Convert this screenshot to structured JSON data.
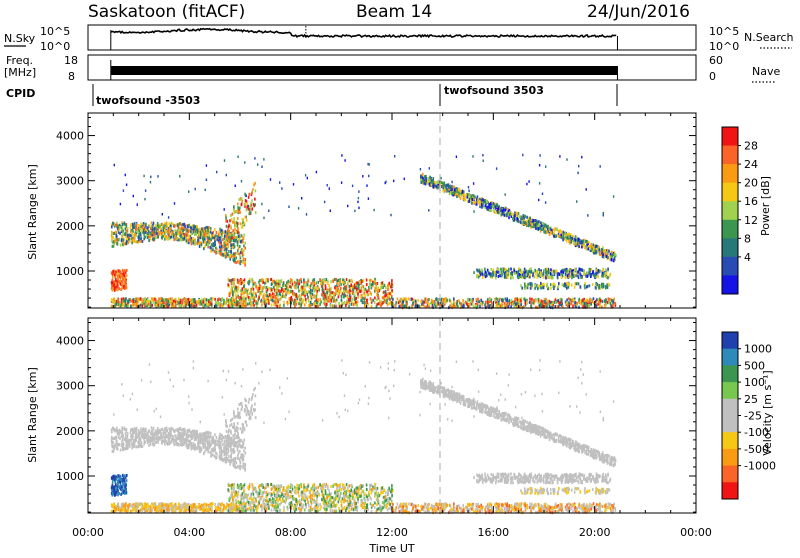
{
  "header": {
    "station": "Saskatoon (fitACF)",
    "beam": "Beam 14",
    "date": "24/Jun/2016"
  },
  "top_panels": {
    "nsky_label": "N.Sky",
    "nsky_ticks_left": [
      "10^5",
      "10^0"
    ],
    "nsearch_label": "N.Search",
    "nsearch_ticks_right": [
      "10^5",
      "10^0"
    ],
    "freq_label": "Freq.",
    "freq_unit": "[MHz]",
    "freq_ticks": [
      "18",
      "8"
    ],
    "nave_label": "Nave",
    "nave_ticks": [
      "60",
      "0"
    ],
    "cpid_label": "CPID",
    "cpid_segments": [
      "twofsound -3503",
      "twofsound 3503"
    ]
  },
  "icons": {
    "nsky_line": "solid-underline",
    "nsearch_line": "dotted-underline",
    "nave_line": "dotted-underline"
  },
  "chart_data": [
    {
      "type": "heatmap",
      "name": "power-panel",
      "ylabel": "Slant Range [km]",
      "yticks": [
        1000,
        2000,
        3000,
        4000
      ],
      "ylim": [
        180,
        4500
      ],
      "xlim_hours": [
        0,
        24
      ],
      "xticks": [
        "00:00",
        "04:00",
        "08:00",
        "12:00",
        "16:00",
        "20:00",
        "00:00"
      ],
      "colorbar": {
        "label": "Power [dB]",
        "ticks": [
          "28",
          "24",
          "20",
          "16",
          "12",
          "8",
          "4"
        ],
        "colors": [
          "#f01414",
          "#fa6428",
          "#fa9b14",
          "#f5c814",
          "#a0d250",
          "#3c9650",
          "#287878",
          "#284bb4",
          "#1414e6"
        ]
      }
    },
    {
      "type": "heatmap",
      "name": "velocity-panel",
      "ylabel": "Slant Range [km]",
      "yticks": [
        1000,
        2000,
        3000,
        4000
      ],
      "ylim": [
        180,
        4500
      ],
      "xlim_hours": [
        0,
        24
      ],
      "xticks": [
        "00:00",
        "04:00",
        "08:00",
        "12:00",
        "16:00",
        "20:00",
        "00:00"
      ],
      "xlabel": "Time UT",
      "colorbar": {
        "label": "Velocity [m s⁻¹]",
        "ticks": [
          "1000",
          "500",
          "100",
          "25",
          "-25",
          "-100",
          "-500",
          "-1000"
        ],
        "colors": [
          "#2040b0",
          "#2e8ab8",
          "#3c9650",
          "#78c850",
          "#c0c0c0",
          "#c0c0c0",
          "#f5c814",
          "#fa9b14",
          "#fa6428",
          "#f01414"
        ]
      }
    }
  ]
}
